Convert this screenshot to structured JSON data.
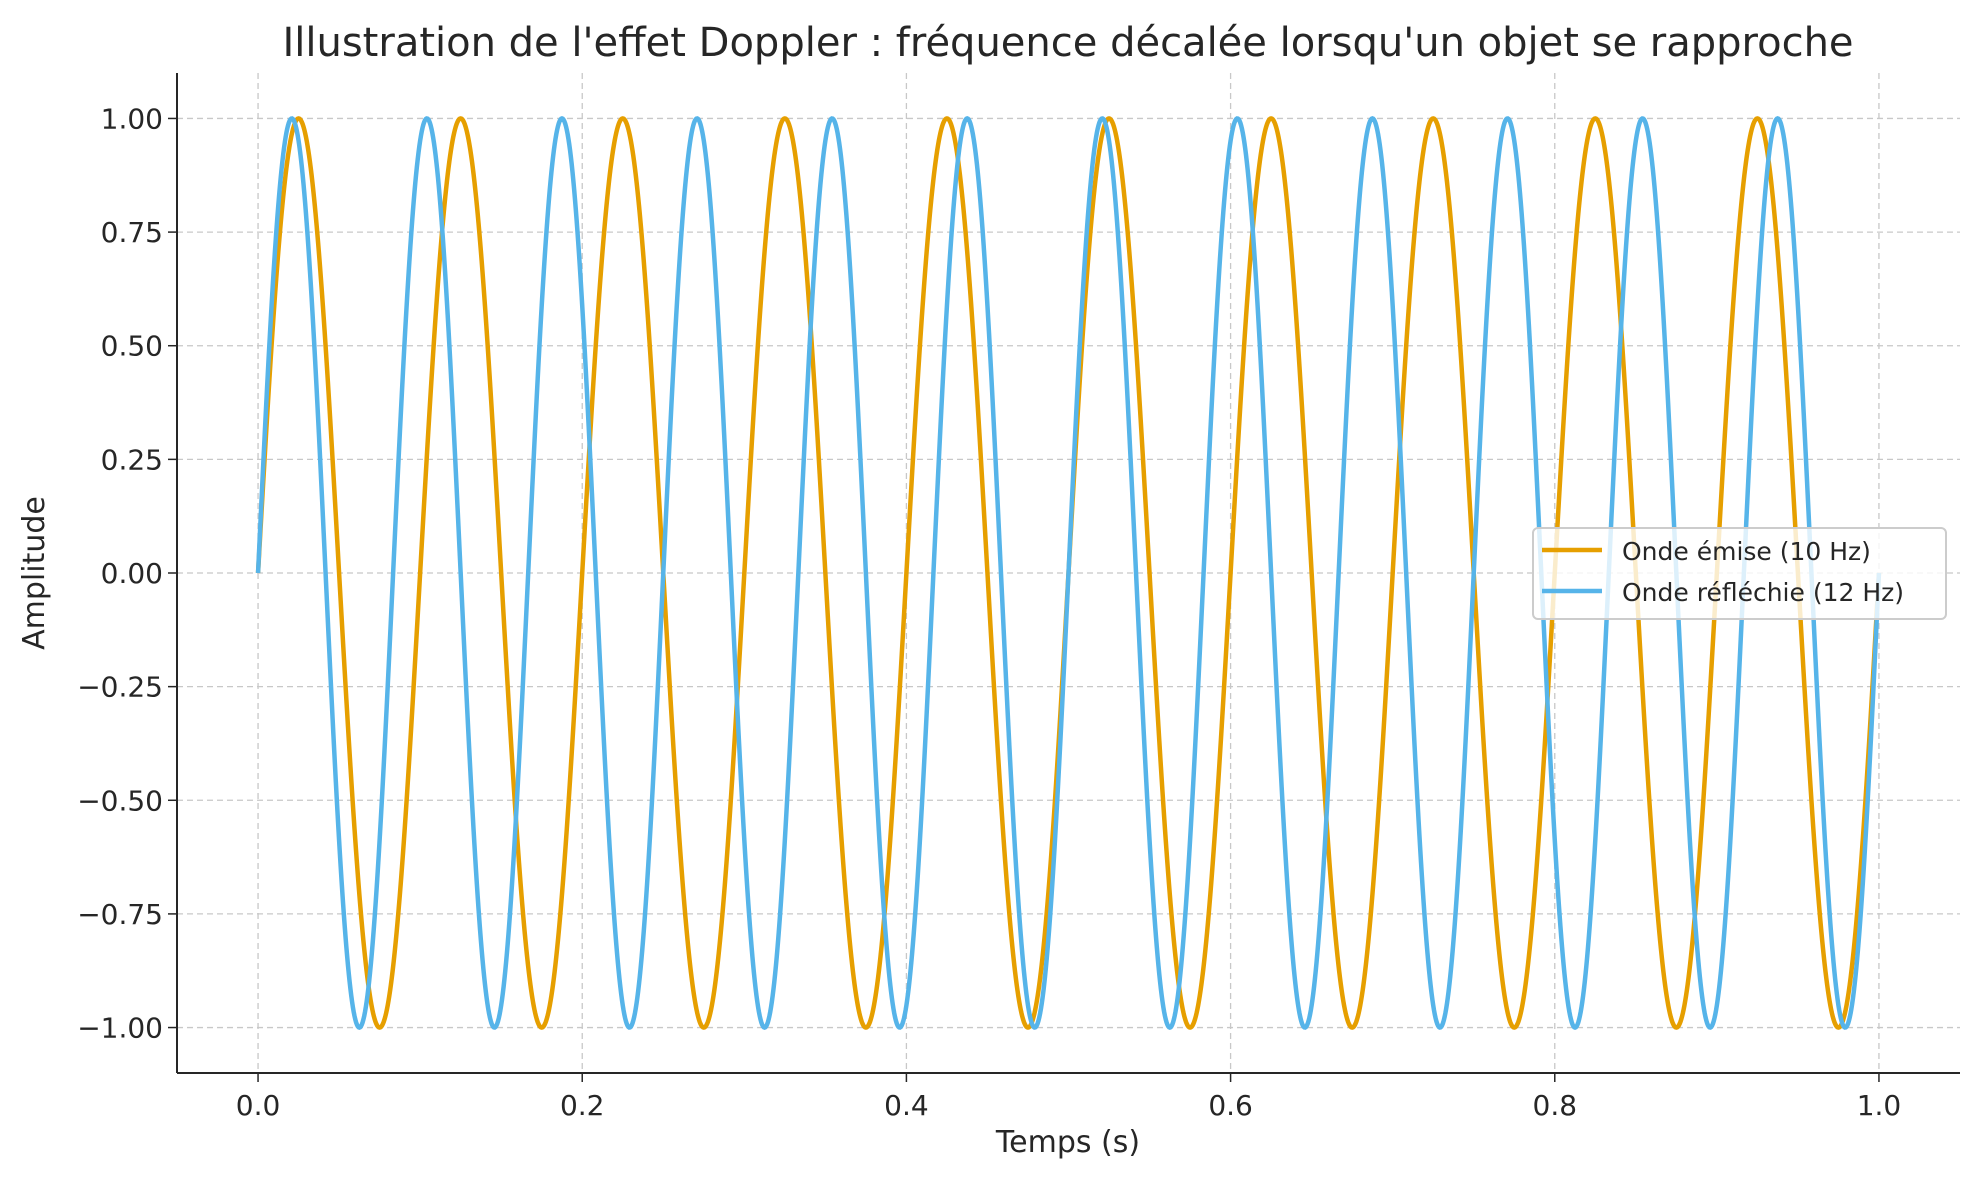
{
  "chart_data": {
    "type": "line",
    "title": "Illustration de l'effet Doppler : fréquence décalée lorsqu'un objet se rapproche",
    "xlabel": "Temps (s)",
    "ylabel": "Amplitude",
    "xlim": [
      -0.05,
      1.05
    ],
    "ylim": [
      -1.1,
      1.1
    ],
    "xticks": [
      0.0,
      0.2,
      0.4,
      0.6,
      0.8,
      1.0
    ],
    "xtick_labels": [
      "0.0",
      "0.2",
      "0.4",
      "0.6",
      "0.8",
      "1.0"
    ],
    "yticks": [
      1.0,
      0.75,
      0.5,
      0.25,
      0.0,
      -0.25,
      -0.5,
      -0.75,
      -1.0
    ],
    "ytick_labels": [
      "1.00",
      "0.75",
      "0.50",
      "0.25",
      "0.00",
      "−0.25",
      "−0.50",
      "−0.75",
      "−1.00"
    ],
    "grid": true,
    "legend_placement": "center-right",
    "series": [
      {
        "name": "Onde émise (10 Hz)",
        "function": "sin(2π·10·t)",
        "frequency_hz": 10,
        "amplitude": 1,
        "t_range": [
          0,
          1
        ],
        "color": "#E69F00"
      },
      {
        "name": "Onde réfléchie (12 Hz)",
        "function": "sin(2π·12·t)",
        "frequency_hz": 12,
        "amplitude": 1,
        "t_range": [
          0,
          1
        ],
        "color": "#56B4E9"
      }
    ]
  }
}
